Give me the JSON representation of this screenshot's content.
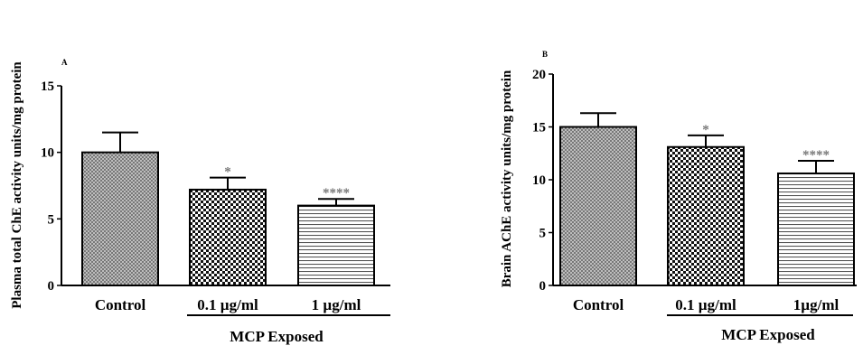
{
  "chart_data": [
    {
      "type": "bar",
      "panel_label": "A",
      "ylabel": "Plasma total ChE activity units/mg protein",
      "categories": [
        "Control",
        "0.1 µg/ml",
        "1 µg/ml"
      ],
      "values": [
        10.0,
        7.2,
        6.0
      ],
      "errors": [
        1.5,
        0.9,
        0.5
      ],
      "significance": [
        "",
        "*",
        "****"
      ],
      "patterns": [
        "crosshatch",
        "checker",
        "hlines"
      ],
      "ylim": [
        0,
        15
      ],
      "yticks": [
        0,
        5,
        10,
        15
      ],
      "group_label": "MCP Exposed",
      "grid": false
    },
    {
      "type": "bar",
      "panel_label": "B",
      "ylabel": "Brain AChE activity units/mg protein",
      "categories": [
        "Control",
        "0.1 µg/ml",
        "1µg/ml"
      ],
      "values": [
        15.0,
        13.1,
        10.6
      ],
      "errors": [
        1.3,
        1.1,
        1.2
      ],
      "significance": [
        "",
        "*",
        "****"
      ],
      "patterns": [
        "crosshatch",
        "checker",
        "hlines"
      ],
      "ylim": [
        0,
        20
      ],
      "yticks": [
        0,
        5,
        10,
        15,
        20
      ],
      "group_label": "MCP Exposed",
      "grid": false
    }
  ]
}
